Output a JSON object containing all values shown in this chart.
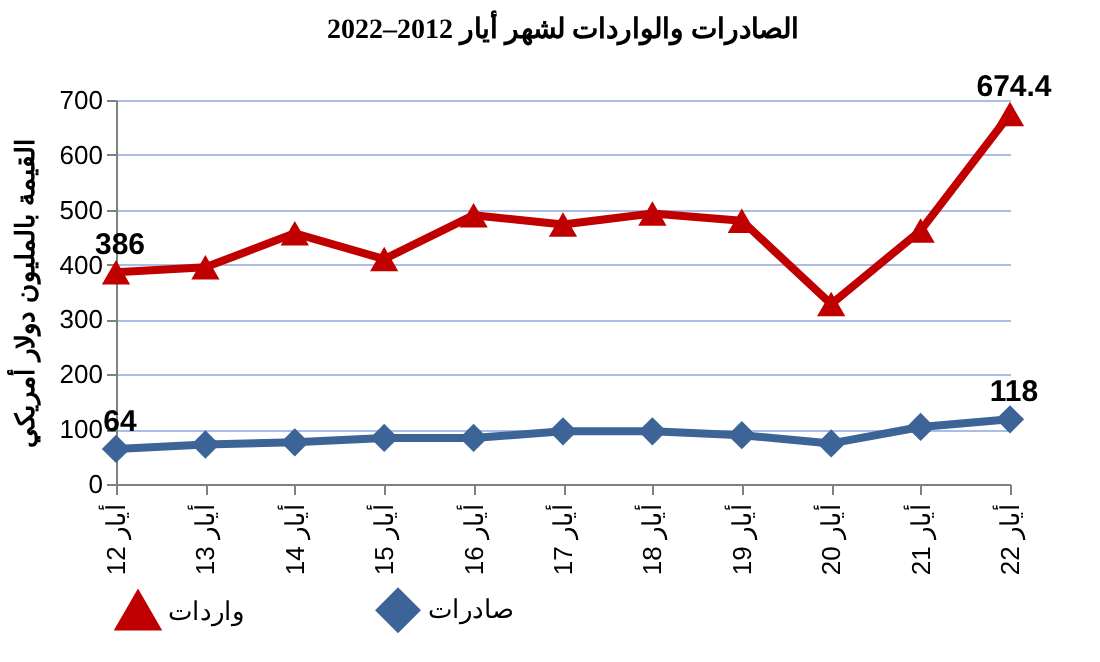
{
  "chart_data": {
    "type": "line",
    "title": "الصادرات والواردات لشهر أيار 2012–2022",
    "ylabel": "القيمة بالمليون دولار أمريكي",
    "categories": [
      "أيار 12",
      "أيار 13",
      "أيار 14",
      "أيار 15",
      "أيار 16",
      "أيار 17",
      "أيار 18",
      "أيار 19",
      "أيار 20",
      "أيار 21",
      "أيار 22"
    ],
    "series": [
      {
        "name": "واردات",
        "color": "#c00000",
        "marker": "triangle",
        "values": [
          386,
          395,
          457,
          410,
          490,
          473,
          493,
          480,
          328,
          462,
          674.4
        ],
        "value_labels": [
          "386",
          null,
          null,
          null,
          null,
          null,
          null,
          null,
          null,
          null,
          "674.4"
        ]
      },
      {
        "name": "صادرات",
        "color": "#3c6496",
        "marker": "diamond",
        "values": [
          64,
          72,
          76,
          84,
          84,
          96,
          96,
          89,
          74,
          104,
          118
        ],
        "value_labels": [
          "64",
          null,
          null,
          null,
          null,
          null,
          null,
          null,
          null,
          null,
          "118"
        ]
      }
    ],
    "ylim": [
      0,
      700
    ],
    "yticks": [
      0,
      100,
      200,
      300,
      400,
      500,
      600,
      700
    ],
    "grid": "y",
    "legend": "bottom",
    "line_style": "solid"
  }
}
